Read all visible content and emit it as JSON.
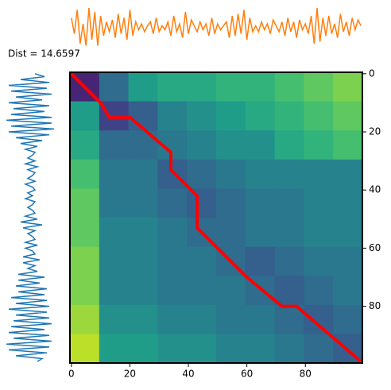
{
  "chart_data": {
    "type": "dtw",
    "title": "Dist = 14.6597",
    "colormap": "viridis",
    "xlim": [
      -0.5,
      99.5
    ],
    "ylim": [
      99.5,
      -0.5
    ],
    "xticks": [
      0,
      20,
      40,
      60,
      80
    ],
    "yticks": [
      0,
      20,
      40,
      60,
      80
    ],
    "cost": [
      [
        0.1,
        0.35,
        0.55,
        0.6,
        0.6,
        0.65,
        0.65,
        0.7,
        0.75,
        0.8
      ],
      [
        0.55,
        0.2,
        0.3,
        0.45,
        0.5,
        0.55,
        0.6,
        0.65,
        0.7,
        0.75
      ],
      [
        0.6,
        0.35,
        0.35,
        0.4,
        0.45,
        0.5,
        0.5,
        0.6,
        0.65,
        0.7
      ],
      [
        0.7,
        0.4,
        0.4,
        0.3,
        0.35,
        0.4,
        0.45,
        0.45,
        0.45,
        0.45
      ],
      [
        0.75,
        0.4,
        0.4,
        0.35,
        0.3,
        0.35,
        0.4,
        0.4,
        0.45,
        0.45
      ],
      [
        0.75,
        0.45,
        0.45,
        0.4,
        0.35,
        0.35,
        0.4,
        0.4,
        0.45,
        0.45
      ],
      [
        0.8,
        0.45,
        0.45,
        0.4,
        0.4,
        0.35,
        0.3,
        0.35,
        0.4,
        0.4
      ],
      [
        0.8,
        0.45,
        0.45,
        0.4,
        0.4,
        0.4,
        0.35,
        0.3,
        0.35,
        0.4
      ],
      [
        0.85,
        0.5,
        0.5,
        0.45,
        0.45,
        0.4,
        0.4,
        0.35,
        0.3,
        0.35
      ],
      [
        0.9,
        0.55,
        0.55,
        0.5,
        0.5,
        0.45,
        0.45,
        0.4,
        0.35,
        0.3
      ]
    ],
    "path": {
      "color": "#ff0000",
      "x": [
        0,
        3,
        10,
        13,
        20,
        34,
        34,
        43,
        43,
        60,
        72,
        77,
        99
      ],
      "y": [
        0,
        3,
        10,
        15,
        15,
        27,
        33,
        42,
        53,
        70,
        80,
        80,
        99
      ]
    },
    "series": [
      {
        "color": "#ff7f0e",
        "values": [
          0.5,
          -0.3,
          0.9,
          -0.8,
          0.2,
          -0.9,
          1.0,
          -0.6,
          0.8,
          -0.9,
          0.6,
          -0.4,
          0.3,
          -0.2,
          0.4,
          -0.5,
          0.7,
          -0.3,
          0.5,
          -0.6,
          0.9,
          -0.4,
          0.3,
          -0.1,
          0.2,
          -0.2,
          0.1,
          0.3,
          -0.3,
          0.5,
          -0.2,
          0.1,
          -0.1,
          0.3,
          -0.4,
          0.6,
          -0.2,
          0.2,
          -0.5,
          0.8,
          -0.3,
          0.4,
          0.1,
          -0.2,
          0.3,
          -0.1,
          0.2,
          -0.4,
          0.5,
          -0.3,
          0.2,
          -0.1,
          0.1,
          0.3,
          -0.5,
          0.6,
          -0.4,
          0.7,
          -0.3,
          0.9,
          -0.6,
          0.5,
          -0.2,
          0.1,
          -0.2,
          0.3,
          -0.1,
          0.2,
          -0.3,
          0.4,
          0.1,
          -0.2,
          0.3,
          -0.4,
          0.5,
          -0.2,
          0.3,
          -0.5,
          0.4,
          -0.1,
          0.2,
          -0.3,
          0.6,
          -0.8,
          1.0,
          -0.7,
          0.5,
          -0.4,
          0.6,
          -0.3,
          0.2,
          -0.5,
          0.7,
          -0.2,
          0.3,
          -0.4,
          0.5,
          -0.1,
          0.4,
          0.1
        ]
      },
      {
        "color": "#1f77b4",
        "values": [
          0.2,
          0.6,
          -0.4,
          0.8,
          -0.9,
          0.7,
          -0.8,
          0.9,
          -0.6,
          0.5,
          -0.9,
          0.8,
          -0.7,
          0.6,
          -0.8,
          0.9,
          -1.0,
          0.9,
          -0.8,
          1.0,
          -0.9,
          0.8,
          -0.6,
          0.5,
          -0.4,
          0.3,
          -0.2,
          0.2,
          0.1,
          -0.1,
          0.2,
          -0.2,
          0.3,
          -0.1,
          0.2,
          0.1,
          -0.1,
          0.2,
          -0.2,
          0.1,
          0.2,
          -0.1,
          0.1,
          -0.2,
          0.2,
          0.1,
          -0.1,
          0.1,
          0.2,
          -0.2,
          0.3,
          -0.4,
          0.5,
          -0.3,
          0.2,
          -0.1,
          0.1,
          0.2,
          -0.2,
          0.3,
          -0.2,
          0.1,
          0.2,
          -0.3,
          0.4,
          -0.3,
          0.2,
          -0.1,
          0.3,
          -0.5,
          0.6,
          -0.5,
          0.4,
          -0.6,
          0.7,
          -0.5,
          0.6,
          -0.8,
          0.7,
          -0.6,
          0.8,
          -0.9,
          0.7,
          -0.6,
          0.8,
          -0.7,
          0.9,
          -0.8,
          0.6,
          -0.9,
          0.8,
          -0.7,
          0.9,
          -1.0,
          0.8,
          -0.9,
          0.7,
          -0.6,
          0.5,
          0.3
        ]
      }
    ]
  }
}
